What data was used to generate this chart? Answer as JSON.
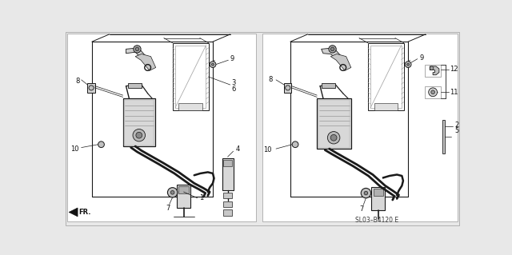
{
  "bg_color": "#e8e8e8",
  "diagram_code": "SL03-B4120 E",
  "figsize": [
    6.4,
    3.19
  ],
  "dpi": 100,
  "lc": "#1a1a1a",
  "panel_bg": "#f5f5f0",
  "gray1": "#888888",
  "gray2": "#aaaaaa",
  "gray3": "#cccccc",
  "label_fs": 6.0,
  "code_fs": 5.5
}
